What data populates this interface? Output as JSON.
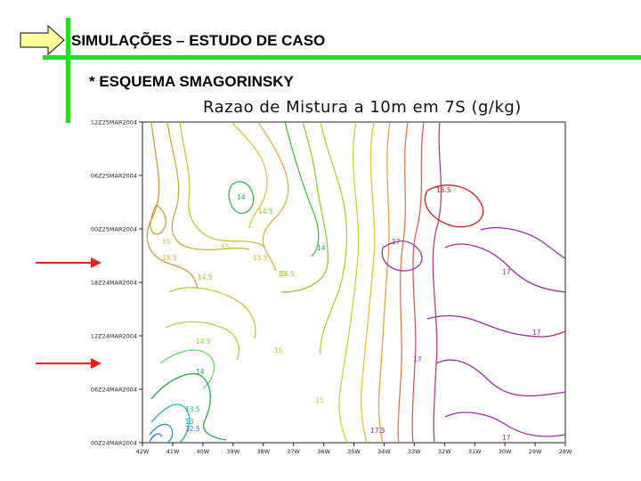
{
  "header": {
    "title": "SIMULAÇÕES – ESTUDO DE CASO",
    "subtitle": "* ESQUEMA SMAGORINSKY"
  },
  "colors": {
    "accent_bar": "#22dd22",
    "arrow_fill": "#ffff99",
    "marker_arrow": "#e8221b"
  },
  "chart_data": {
    "type": "contour",
    "title": "Razao de Mistura a 10m em 7S (g/kg)",
    "x_tick_labels": [
      "42W",
      "41W",
      "40W",
      "39W",
      "38W",
      "37W",
      "36W",
      "35W",
      "34W",
      "33W",
      "32W",
      "31W",
      "30W",
      "29W",
      "28W"
    ],
    "y_tick_labels": [
      "00Z24MAR2004",
      "06Z24MAR2004",
      "12Z24MAR2004",
      "18Z24MAR2004",
      "00Z25MAR2004",
      "06Z25MAR2004",
      "12Z25MAR2004"
    ],
    "contour_levels": [
      12.5,
      13,
      13.5,
      14,
      14.5,
      15,
      15.5,
      16,
      16.5,
      17,
      17.5
    ],
    "contour_labels": [
      {
        "text": "14",
        "level": 14
      },
      {
        "text": "14.5",
        "level": 14.5
      },
      {
        "text": "15",
        "level": 15
      },
      {
        "text": "15.5",
        "level": 15.5
      },
      {
        "text": "15",
        "level": 15
      },
      {
        "text": "15.5",
        "level": 15.5
      },
      {
        "text": "14",
        "level": 14
      },
      {
        "text": "15",
        "level": 15
      },
      {
        "text": "14.5",
        "level": 14.5
      },
      {
        "text": "14.5",
        "level": 14.5
      },
      {
        "text": "15",
        "level": 15
      },
      {
        "text": "14.5",
        "level": 14.5
      },
      {
        "text": "14",
        "level": 14
      },
      {
        "text": "15",
        "level": 15
      },
      {
        "text": "13.5",
        "level": 13.5
      },
      {
        "text": "13",
        "level": 13
      },
      {
        "text": "12.5",
        "level": 12.5
      },
      {
        "text": "16.5",
        "level": 16.5
      },
      {
        "text": "17",
        "level": 17
      },
      {
        "text": "17",
        "level": 17
      },
      {
        "text": "17",
        "level": 17
      },
      {
        "text": "17",
        "level": 17
      },
      {
        "text": "17.5",
        "level": 17.5
      },
      {
        "text": "17",
        "level": 17
      }
    ]
  }
}
